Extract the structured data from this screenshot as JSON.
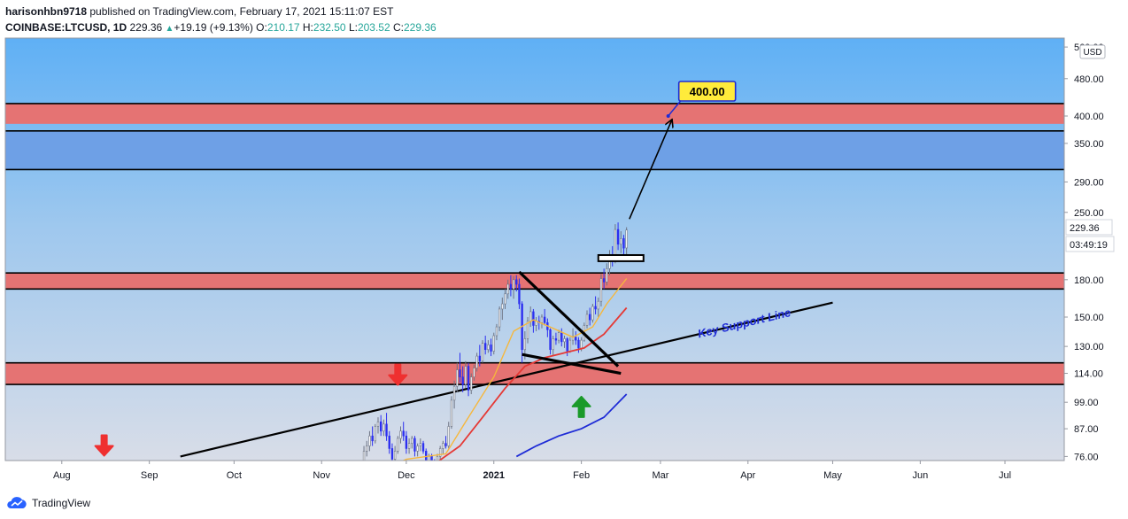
{
  "header": {
    "author": "harisonhbn9718",
    "publish_text": "published on TradingView.com, February 17, 2021 15:11:07 EST",
    "symbol": "COINBASE:LTCUSD, 1D",
    "last": "229.36",
    "change": "+19.19 (+9.13%)",
    "o_label": "O:",
    "o_value": "210.17",
    "h_label": "H:",
    "h_value": "232.50",
    "l_label": "L:",
    "l_value": "203.52",
    "c_label": "C:",
    "c_value": "229.36"
  },
  "footer": {
    "brand": "TradingView",
    "icon": "tradingview-cloud-icon"
  },
  "colors": {
    "zone_red": "#e57373",
    "zone_blue": "#6ea0e6",
    "ema_fast": "#f6b73c",
    "ema_mid": "#e53935",
    "ema_slow": "#1e2bd6",
    "candle_up": "#ffffff",
    "candle_down": "#2c2ff0",
    "target_label_bg": "#ffeb3b",
    "target_label_border": "#1e2bd6",
    "arrow_down": "#ef3030",
    "arrow_up": "#1a9a2a",
    "support_text": "#1e2bd6"
  },
  "chart_data": {
    "type": "candlestick",
    "scale": "log",
    "currency_badge": "USD",
    "y_ticks": [
      "560.00",
      "480.00",
      "400.00",
      "350.00",
      "290.00",
      "250.00",
      "180.00",
      "150.00",
      "130.00",
      "114.00",
      "99.00",
      "87.00",
      "76.00"
    ],
    "y_tick_values": [
      560,
      480,
      400,
      350,
      290,
      250,
      180,
      150,
      130,
      114,
      99,
      87,
      76
    ],
    "x_ticks": [
      "Aug",
      "Sep",
      "Oct",
      "Nov",
      "Dec",
      "2021",
      "Feb",
      "Mar",
      "Apr",
      "May",
      "Jun",
      "Jul"
    ],
    "x_tick_dates": [
      "2020-08-01",
      "2020-09-01",
      "2020-10-01",
      "2020-11-01",
      "2020-12-01",
      "2021-01-01",
      "2021-02-01",
      "2021-03-01",
      "2021-04-01",
      "2021-05-01",
      "2021-06-01",
      "2021-07-01"
    ],
    "x_range": [
      "2020-07-12",
      "2021-07-22"
    ],
    "y_range": [
      74.5,
      585
    ],
    "price_label": "229.36",
    "countdown_label": "03:49:19",
    "zones": [
      {
        "kind": "resistance",
        "color": "red",
        "low": 385,
        "high": 425
      },
      {
        "kind": "resistance",
        "color": "blue",
        "low": 308,
        "high": 372
      },
      {
        "kind": "support",
        "color": "red",
        "low": 172,
        "high": 186
      },
      {
        "kind": "support",
        "color": "red",
        "low": 108,
        "high": 120
      }
    ],
    "zone_borders": [
      425,
      372,
      308,
      186,
      172,
      120,
      108
    ],
    "annotations": {
      "target_label": "400.00",
      "target_price": 400,
      "support_text": "Key Support Line"
    },
    "support_line": {
      "start": [
        "2020-09-12",
        76
      ],
      "end": [
        "2021-05-01",
        161
      ]
    },
    "triangle_upper": {
      "start": [
        "2021-01-10",
        187
      ],
      "end": [
        "2021-02-14",
        118
      ]
    },
    "triangle_lower": {
      "start": [
        "2021-01-11",
        125
      ],
      "end": [
        "2021-02-15",
        114
      ]
    },
    "breakout_box": {
      "start": [
        "2021-02-07",
        203
      ],
      "end": [
        "2021-02-23",
        197
      ]
    },
    "projection_arrow": {
      "start": [
        "2021-02-18",
        242
      ],
      "end": [
        "2021-03-05",
        392
      ]
    },
    "arrows": [
      {
        "direction": "down",
        "date": "2020-08-16",
        "price": 80
      },
      {
        "direction": "down",
        "date": "2020-11-28",
        "price": 113
      },
      {
        "direction": "up",
        "date": "2021-02-01",
        "price": 97
      }
    ],
    "candles": [
      {
        "d": "2020-11-16",
        "o": 74,
        "h": 80,
        "l": 72,
        "c": 78
      },
      {
        "d": "2020-11-17",
        "o": 78,
        "h": 82,
        "l": 76,
        "c": 80
      },
      {
        "d": "2020-11-18",
        "o": 80,
        "h": 86,
        "l": 78,
        "c": 84
      },
      {
        "d": "2020-11-19",
        "o": 84,
        "h": 88,
        "l": 80,
        "c": 82
      },
      {
        "d": "2020-11-20",
        "o": 82,
        "h": 89,
        "l": 81,
        "c": 88
      },
      {
        "d": "2020-11-21",
        "o": 88,
        "h": 92,
        "l": 85,
        "c": 90
      },
      {
        "d": "2020-11-22",
        "o": 90,
        "h": 93,
        "l": 84,
        "c": 86
      },
      {
        "d": "2020-11-23",
        "o": 86,
        "h": 91,
        "l": 84,
        "c": 89
      },
      {
        "d": "2020-11-24",
        "o": 89,
        "h": 94,
        "l": 82,
        "c": 84
      },
      {
        "d": "2020-11-25",
        "o": 84,
        "h": 86,
        "l": 77,
        "c": 79
      },
      {
        "d": "2020-11-26",
        "o": 79,
        "h": 81,
        "l": 73,
        "c": 75
      },
      {
        "d": "2020-11-27",
        "o": 75,
        "h": 80,
        "l": 73,
        "c": 78
      },
      {
        "d": "2020-11-28",
        "o": 78,
        "h": 84,
        "l": 77,
        "c": 83
      },
      {
        "d": "2020-11-29",
        "o": 83,
        "h": 88,
        "l": 81,
        "c": 86
      },
      {
        "d": "2020-11-30",
        "o": 86,
        "h": 90,
        "l": 82,
        "c": 84
      },
      {
        "d": "2020-12-01",
        "o": 84,
        "h": 86,
        "l": 77,
        "c": 79
      },
      {
        "d": "2020-12-02",
        "o": 79,
        "h": 83,
        "l": 77,
        "c": 81
      },
      {
        "d": "2020-12-03",
        "o": 81,
        "h": 84,
        "l": 79,
        "c": 83
      },
      {
        "d": "2020-12-04",
        "o": 83,
        "h": 84,
        "l": 76,
        "c": 78
      },
      {
        "d": "2020-12-05",
        "o": 78,
        "h": 81,
        "l": 76,
        "c": 80
      },
      {
        "d": "2020-12-06",
        "o": 80,
        "h": 83,
        "l": 78,
        "c": 81
      },
      {
        "d": "2020-12-07",
        "o": 81,
        "h": 82,
        "l": 77,
        "c": 78
      },
      {
        "d": "2020-12-08",
        "o": 78,
        "h": 79,
        "l": 73,
        "c": 74
      },
      {
        "d": "2020-12-09",
        "o": 74,
        "h": 77,
        "l": 71,
        "c": 76
      },
      {
        "d": "2020-12-10",
        "o": 76,
        "h": 77,
        "l": 72,
        "c": 73
      },
      {
        "d": "2020-12-11",
        "o": 73,
        "h": 75,
        "l": 70,
        "c": 72
      },
      {
        "d": "2020-12-12",
        "o": 72,
        "h": 77,
        "l": 71,
        "c": 76
      },
      {
        "d": "2020-12-13",
        "o": 76,
        "h": 80,
        "l": 75,
        "c": 79
      },
      {
        "d": "2020-12-14",
        "o": 79,
        "h": 82,
        "l": 77,
        "c": 81
      },
      {
        "d": "2020-12-15",
        "o": 81,
        "h": 84,
        "l": 79,
        "c": 80
      },
      {
        "d": "2020-12-16",
        "o": 80,
        "h": 90,
        "l": 79,
        "c": 88
      },
      {
        "d": "2020-12-17",
        "o": 88,
        "h": 102,
        "l": 87,
        "c": 100
      },
      {
        "d": "2020-12-18",
        "o": 100,
        "h": 110,
        "l": 96,
        "c": 107
      },
      {
        "d": "2020-12-19",
        "o": 107,
        "h": 120,
        "l": 104,
        "c": 116
      },
      {
        "d": "2020-12-20",
        "o": 116,
        "h": 126,
        "l": 109,
        "c": 112
      },
      {
        "d": "2020-12-21",
        "o": 112,
        "h": 118,
        "l": 104,
        "c": 108
      },
      {
        "d": "2020-12-22",
        "o": 108,
        "h": 121,
        "l": 106,
        "c": 118
      },
      {
        "d": "2020-12-23",
        "o": 118,
        "h": 120,
        "l": 102,
        "c": 105
      },
      {
        "d": "2020-12-24",
        "o": 105,
        "h": 114,
        "l": 103,
        "c": 112
      },
      {
        "d": "2020-12-25",
        "o": 112,
        "h": 119,
        "l": 110,
        "c": 117
      },
      {
        "d": "2020-12-26",
        "o": 117,
        "h": 126,
        "l": 115,
        "c": 124
      },
      {
        "d": "2020-12-27",
        "o": 124,
        "h": 131,
        "l": 118,
        "c": 121
      },
      {
        "d": "2020-12-28",
        "o": 121,
        "h": 134,
        "l": 120,
        "c": 132
      },
      {
        "d": "2020-12-29",
        "o": 132,
        "h": 137,
        "l": 125,
        "c": 128
      },
      {
        "d": "2020-12-30",
        "o": 128,
        "h": 134,
        "l": 126,
        "c": 131
      },
      {
        "d": "2020-12-31",
        "o": 131,
        "h": 135,
        "l": 124,
        "c": 127
      },
      {
        "d": "2021-01-01",
        "o": 127,
        "h": 139,
        "l": 125,
        "c": 137
      },
      {
        "d": "2021-01-02",
        "o": 137,
        "h": 145,
        "l": 134,
        "c": 143
      },
      {
        "d": "2021-01-03",
        "o": 143,
        "h": 158,
        "l": 140,
        "c": 156
      },
      {
        "d": "2021-01-04",
        "o": 156,
        "h": 165,
        "l": 148,
        "c": 160
      },
      {
        "d": "2021-01-05",
        "o": 160,
        "h": 172,
        "l": 156,
        "c": 168
      },
      {
        "d": "2021-01-06",
        "o": 168,
        "h": 180,
        "l": 164,
        "c": 176
      },
      {
        "d": "2021-01-07",
        "o": 176,
        "h": 184,
        "l": 166,
        "c": 172
      },
      {
        "d": "2021-01-08",
        "o": 172,
        "h": 183,
        "l": 164,
        "c": 180
      },
      {
        "d": "2021-01-09",
        "o": 180,
        "h": 184,
        "l": 170,
        "c": 176
      },
      {
        "d": "2021-01-10",
        "o": 176,
        "h": 181,
        "l": 156,
        "c": 160
      },
      {
        "d": "2021-01-11",
        "o": 160,
        "h": 162,
        "l": 120,
        "c": 128
      },
      {
        "d": "2021-01-12",
        "o": 128,
        "h": 140,
        "l": 122,
        "c": 135
      },
      {
        "d": "2021-01-13",
        "o": 135,
        "h": 150,
        "l": 132,
        "c": 147
      },
      {
        "d": "2021-01-14",
        "o": 147,
        "h": 158,
        "l": 143,
        "c": 154
      },
      {
        "d": "2021-01-15",
        "o": 154,
        "h": 156,
        "l": 139,
        "c": 144
      },
      {
        "d": "2021-01-16",
        "o": 144,
        "h": 150,
        "l": 140,
        "c": 147
      },
      {
        "d": "2021-01-17",
        "o": 147,
        "h": 151,
        "l": 141,
        "c": 146
      },
      {
        "d": "2021-01-18",
        "o": 146,
        "h": 152,
        "l": 142,
        "c": 150
      },
      {
        "d": "2021-01-19",
        "o": 150,
        "h": 156,
        "l": 144,
        "c": 146
      },
      {
        "d": "2021-01-20",
        "o": 146,
        "h": 149,
        "l": 136,
        "c": 141
      },
      {
        "d": "2021-01-21",
        "o": 141,
        "h": 142,
        "l": 125,
        "c": 128
      },
      {
        "d": "2021-01-22",
        "o": 128,
        "h": 137,
        "l": 124,
        "c": 135
      },
      {
        "d": "2021-01-23",
        "o": 135,
        "h": 139,
        "l": 131,
        "c": 134
      },
      {
        "d": "2021-01-24",
        "o": 134,
        "h": 141,
        "l": 132,
        "c": 139
      },
      {
        "d": "2021-01-25",
        "o": 139,
        "h": 142,
        "l": 130,
        "c": 133
      },
      {
        "d": "2021-01-26",
        "o": 133,
        "h": 137,
        "l": 129,
        "c": 135
      },
      {
        "d": "2021-01-27",
        "o": 135,
        "h": 136,
        "l": 124,
        "c": 127
      },
      {
        "d": "2021-01-28",
        "o": 127,
        "h": 136,
        "l": 126,
        "c": 134
      },
      {
        "d": "2021-01-29",
        "o": 134,
        "h": 142,
        "l": 131,
        "c": 136
      },
      {
        "d": "2021-01-30",
        "o": 136,
        "h": 140,
        "l": 131,
        "c": 134
      },
      {
        "d": "2021-01-31",
        "o": 134,
        "h": 136,
        "l": 126,
        "c": 129
      },
      {
        "d": "2021-02-01",
        "o": 129,
        "h": 136,
        "l": 127,
        "c": 134
      },
      {
        "d": "2021-02-02",
        "o": 134,
        "h": 146,
        "l": 133,
        "c": 144
      },
      {
        "d": "2021-02-03",
        "o": 144,
        "h": 155,
        "l": 142,
        "c": 152
      },
      {
        "d": "2021-02-04",
        "o": 152,
        "h": 157,
        "l": 144,
        "c": 148
      },
      {
        "d": "2021-02-05",
        "o": 148,
        "h": 160,
        "l": 146,
        "c": 158
      },
      {
        "d": "2021-02-06",
        "o": 158,
        "h": 166,
        "l": 152,
        "c": 156
      },
      {
        "d": "2021-02-07",
        "o": 156,
        "h": 165,
        "l": 150,
        "c": 162
      },
      {
        "d": "2021-02-08",
        "o": 162,
        "h": 185,
        "l": 158,
        "c": 181
      },
      {
        "d": "2021-02-09",
        "o": 181,
        "h": 190,
        "l": 172,
        "c": 178
      },
      {
        "d": "2021-02-10",
        "o": 178,
        "h": 195,
        "l": 175,
        "c": 190
      },
      {
        "d": "2021-02-11",
        "o": 190,
        "h": 208,
        "l": 184,
        "c": 202
      },
      {
        "d": "2021-02-12",
        "o": 202,
        "h": 212,
        "l": 192,
        "c": 197
      },
      {
        "d": "2021-02-13",
        "o": 197,
        "h": 236,
        "l": 195,
        "c": 230
      },
      {
        "d": "2021-02-14",
        "o": 230,
        "h": 238,
        "l": 208,
        "c": 214
      },
      {
        "d": "2021-02-15",
        "o": 214,
        "h": 228,
        "l": 205,
        "c": 220
      },
      {
        "d": "2021-02-16",
        "o": 220,
        "h": 224,
        "l": 203,
        "c": 210
      },
      {
        "d": "2021-02-17",
        "o": 210.17,
        "h": 232.5,
        "l": 203.52,
        "c": 229.36
      }
    ],
    "ema_fast": [
      [
        "2020-11-20",
        70
      ],
      [
        "2020-12-01",
        75
      ],
      [
        "2020-12-15",
        77
      ],
      [
        "2020-12-22",
        90
      ],
      [
        "2021-01-01",
        112
      ],
      [
        "2021-01-08",
        140
      ],
      [
        "2021-01-15",
        148
      ],
      [
        "2021-01-22",
        142
      ],
      [
        "2021-01-29",
        136
      ],
      [
        "2021-02-05",
        143
      ],
      [
        "2021-02-10",
        160
      ],
      [
        "2021-02-17",
        181
      ]
    ],
    "ema_mid": [
      [
        "2020-12-12",
        74
      ],
      [
        "2020-12-20",
        80
      ],
      [
        "2020-12-28",
        92
      ],
      [
        "2021-01-05",
        106
      ],
      [
        "2021-01-12",
        118
      ],
      [
        "2021-01-19",
        123
      ],
      [
        "2021-01-26",
        126
      ],
      [
        "2021-02-02",
        129
      ],
      [
        "2021-02-09",
        138
      ],
      [
        "2021-02-17",
        157
      ]
    ],
    "ema_slow": [
      [
        "2021-01-09",
        76
      ],
      [
        "2021-01-16",
        80
      ],
      [
        "2021-01-24",
        84
      ],
      [
        "2021-02-01",
        87
      ],
      [
        "2021-02-09",
        92
      ],
      [
        "2021-02-17",
        103
      ]
    ]
  }
}
